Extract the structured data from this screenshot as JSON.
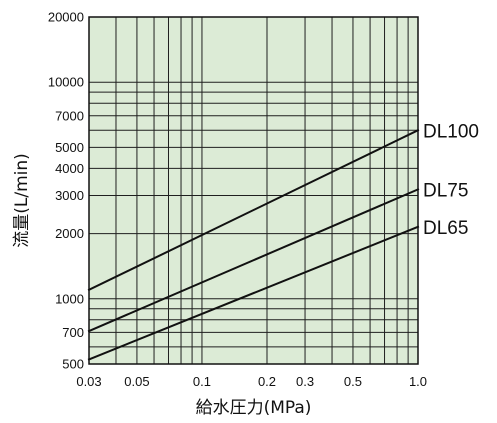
{
  "colors": {
    "plot_background": "#dcebd6",
    "grid_line": "#1f1f1f",
    "series_line": "#111111",
    "frame": "#111111"
  },
  "chart_data": {
    "type": "line",
    "title": "",
    "xlabel": "給水圧力(MPa)",
    "ylabel": "流量(L/min)",
    "x_scale": "log",
    "y_scale": "log",
    "xlim": [
      0.03,
      1.0
    ],
    "ylim": [
      500,
      20000
    ],
    "grid": true,
    "x_gridlines": [
      0.03,
      0.04,
      0.05,
      0.06,
      0.07,
      0.08,
      0.09,
      0.1,
      0.2,
      0.3,
      0.4,
      0.5,
      0.6,
      0.7,
      0.8,
      0.9,
      1.0
    ],
    "y_gridlines": [
      500,
      600,
      700,
      800,
      900,
      1000,
      2000,
      3000,
      4000,
      5000,
      6000,
      7000,
      8000,
      9000,
      10000,
      20000
    ],
    "x_ticks": [
      {
        "value": 0.03,
        "label": "0.03"
      },
      {
        "value": 0.05,
        "label": "0.05"
      },
      {
        "value": 0.1,
        "label": "0.1"
      },
      {
        "value": 0.2,
        "label": "0.2"
      },
      {
        "value": 0.3,
        "label": "0.3"
      },
      {
        "value": 0.5,
        "label": "0.5"
      },
      {
        "value": 1.0,
        "label": "1.0"
      }
    ],
    "y_ticks": [
      {
        "value": 500,
        "label": "500"
      },
      {
        "value": 700,
        "label": "700"
      },
      {
        "value": 1000,
        "label": "1000"
      },
      {
        "value": 2000,
        "label": "2000"
      },
      {
        "value": 3000,
        "label": "3000"
      },
      {
        "value": 4000,
        "label": "4000"
      },
      {
        "value": 5000,
        "label": "5000"
      },
      {
        "value": 7000,
        "label": "7000"
      },
      {
        "value": 10000,
        "label": "10000"
      },
      {
        "value": 20000,
        "label": "20000"
      }
    ],
    "series": [
      {
        "name": "DL100",
        "x": [
          0.03,
          1.0
        ],
        "y": [
          1100,
          6000
        ]
      },
      {
        "name": "DL75",
        "x": [
          0.03,
          1.0
        ],
        "y": [
          710,
          3200
        ]
      },
      {
        "name": "DL65",
        "x": [
          0.03,
          1.0
        ],
        "y": [
          525,
          2150
        ]
      }
    ]
  }
}
